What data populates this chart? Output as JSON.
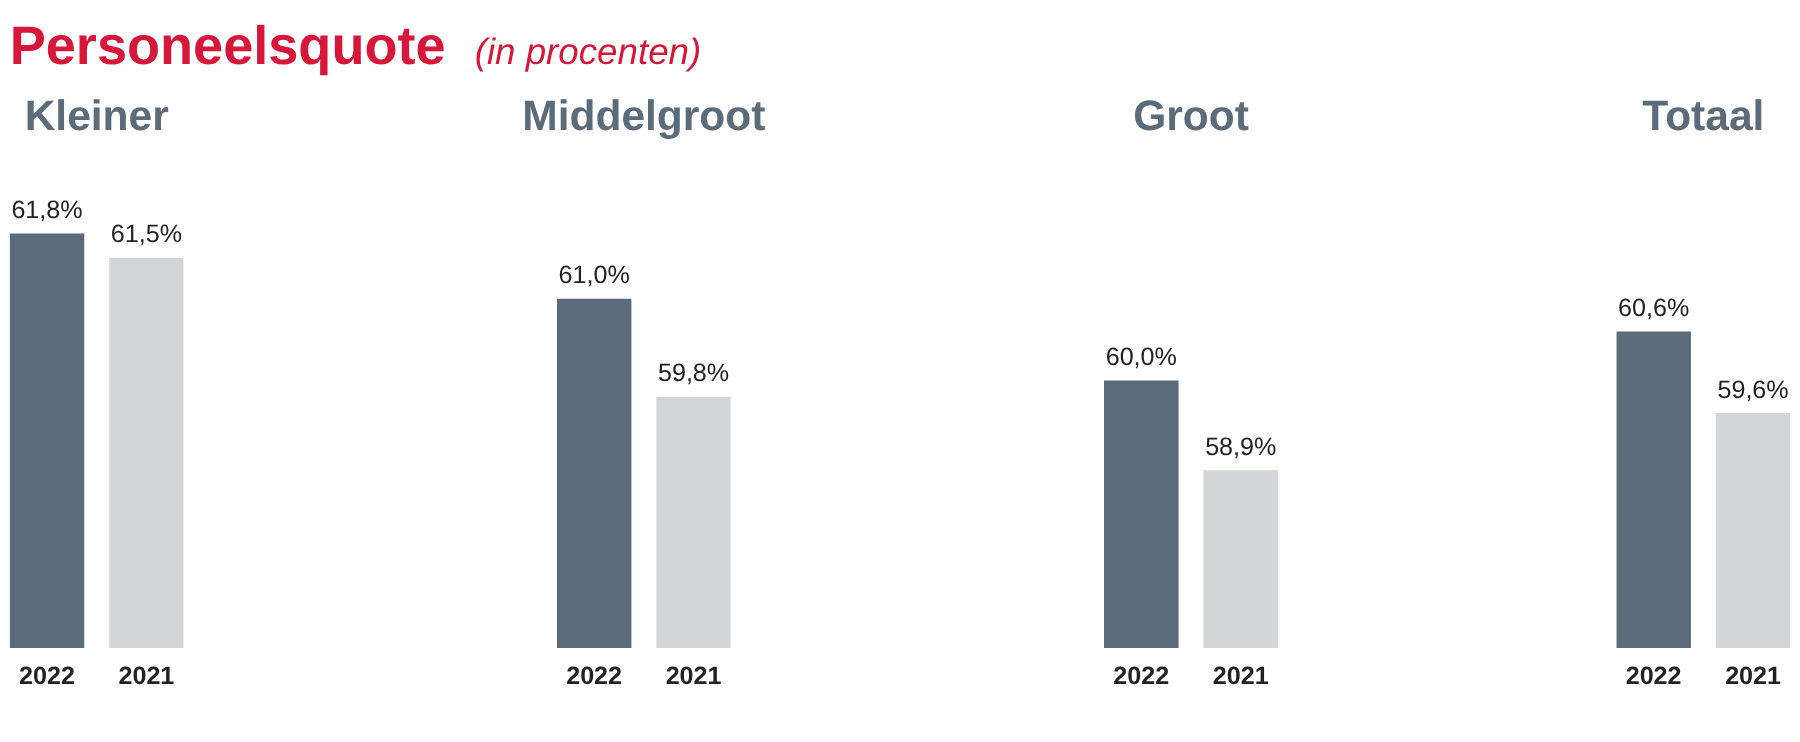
{
  "chart_data": [
    {
      "type": "bar",
      "title": "Kleiner",
      "annotations": [
        "Personeelsquote",
        "(in procenten)"
      ],
      "categories": [
        "2022",
        "2021"
      ],
      "values": [
        61.8,
        61.5
      ],
      "value_labels": [
        "61,8%",
        "61,5%"
      ],
      "colors": [
        "#5b6b7a",
        "#d3d6d9"
      ],
      "tick_labels": "x",
      "grid": false,
      "legend": false
    },
    {
      "type": "bar",
      "title": "Middelgroot",
      "categories": [
        "2022",
        "2021"
      ],
      "values": [
        61.0,
        59.8
      ],
      "value_labels": [
        "61,0%",
        "59,8%"
      ],
      "colors": [
        "#5b6b7a",
        "#d3d6d9"
      ],
      "tick_labels": "x",
      "grid": false,
      "legend": false
    },
    {
      "type": "bar",
      "title": "Groot",
      "categories": [
        "2022",
        "2021"
      ],
      "values": [
        60.0,
        58.9
      ],
      "value_labels": [
        "60,0%",
        "58,9%"
      ],
      "colors": [
        "#5b6b7a",
        "#d3d6d9"
      ],
      "tick_labels": "x",
      "grid": false,
      "legend": false
    },
    {
      "type": "bar",
      "title": "Totaal",
      "categories": [
        "2022",
        "2021"
      ],
      "values": [
        60.6,
        59.6
      ],
      "value_labels": [
        "60,6%",
        "59,6%"
      ],
      "colors": [
        "#5b6b7a",
        "#d3d6d9"
      ],
      "tick_labels": "x",
      "grid": false,
      "legend": false
    }
  ]
}
